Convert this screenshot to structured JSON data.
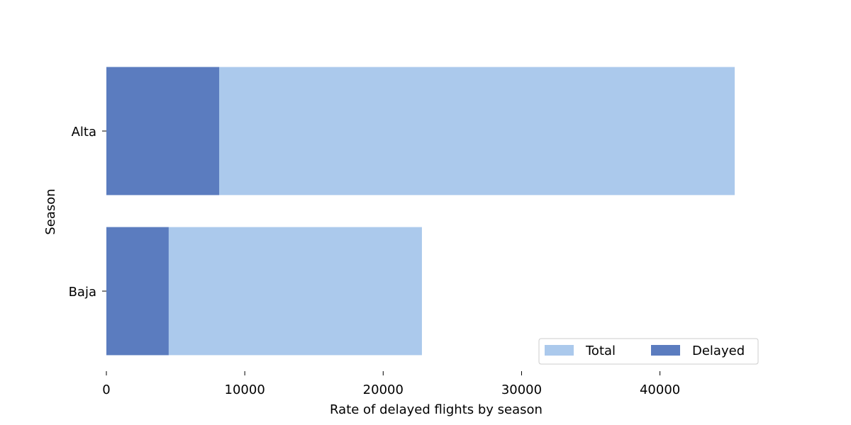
{
  "chart_data": {
    "type": "bar",
    "orientation": "horizontal",
    "stacking": "overlay",
    "categories": [
      "Alta",
      "Baja"
    ],
    "series": [
      {
        "name": "Total",
        "values": [
          45400,
          22800
        ],
        "color": "#abc9ec"
      },
      {
        "name": "Delayed",
        "values": [
          8150,
          4500
        ],
        "color": "#5b7cbf"
      }
    ],
    "xlabel": "Rate of delayed flights by season",
    "ylabel": "Season",
    "xlim": [
      0,
      45400
    ],
    "xticks": [
      0,
      10000,
      20000,
      30000,
      40000
    ],
    "grid": false,
    "legend": {
      "placement": "lower-right",
      "columns": 2
    }
  }
}
